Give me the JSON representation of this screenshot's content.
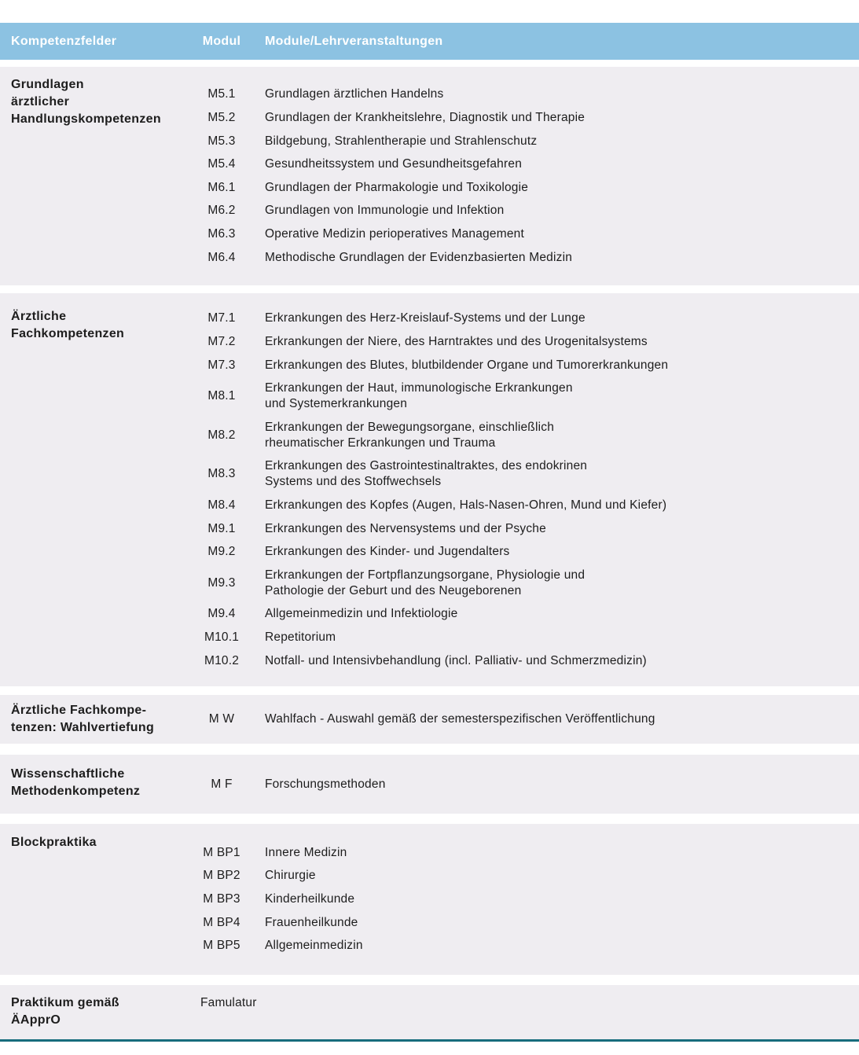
{
  "header": {
    "col1": "Kompetenzfelder",
    "col2": "Modul",
    "col3": "Module/Lehrveranstaltungen"
  },
  "colors": {
    "header_bg": "#8cc2e2",
    "header_text": "#ffffff",
    "band_bg": "#efedf1",
    "text_color": "#1d1d1d",
    "accent": "#176c7c"
  },
  "sections": [
    {
      "field": [
        "Grundlagen",
        "ärztlicher",
        "Handlungskompetenzen"
      ],
      "rows": [
        {
          "code": "M5.1",
          "title": "Grundlagen ärztlichen Handelns"
        },
        {
          "code": "M5.2",
          "title": "Grundlagen der Krankheitslehre, Diagnostik und Therapie"
        },
        {
          "code": "M5.3",
          "title": "Bildgebung, Strahlentherapie und Strahlenschutz"
        },
        {
          "code": "M5.4",
          "title": "Gesundheitssystem und Gesundheitsgefahren"
        },
        {
          "code": "M6.1",
          "title": "Grundlagen der Pharmakologie und Toxikologie"
        },
        {
          "code": "M6.2",
          "title": "Grundlagen von Immunologie und Infektion"
        },
        {
          "code": "M6.3",
          "title": "Operative Medizin perioperatives Management"
        },
        {
          "code": "M6.4",
          "title": "Methodische Grundlagen der Evidenzbasierten Medizin"
        }
      ]
    },
    {
      "field": [
        "Ärztliche",
        "Fachkompetenzen"
      ],
      "rows": [
        {
          "code": "M7.1",
          "title": "Erkrankungen des Herz-Kreislauf-Systems und der Lunge"
        },
        {
          "code": "M7.2",
          "title": "Erkrankungen der Niere, des Harntraktes und des Urogenitalsystems"
        },
        {
          "code": "M7.3",
          "title": "Erkrankungen des Blutes, blutbildender Organe und Tumorerkrankungen"
        },
        {
          "code": "M8.1",
          "title": [
            "Erkrankungen der Haut, immunologische Erkrankungen",
            "und Systemerkrankungen"
          ]
        },
        {
          "code": "M8.2",
          "title": [
            "Erkrankungen der Bewegungsorgane, einschließlich",
            "rheumatischer Erkrankungen und Trauma"
          ]
        },
        {
          "code": "M8.3",
          "title": [
            "Erkrankungen des Gastrointestinaltraktes, des endokrinen",
            "Systems und des Stoffwechsels"
          ]
        },
        {
          "code": "M8.4",
          "title": "Erkrankungen des Kopfes (Augen, Hals-Nasen-Ohren, Mund und Kiefer)"
        },
        {
          "code": "M9.1",
          "title": "Erkrankungen des Nervensystems und der Psyche"
        },
        {
          "code": "M9.2",
          "title": "Erkrankungen des Kinder- und Jugendalters"
        },
        {
          "code": "M9.3",
          "title": [
            "Erkrankungen der Fortpflanzungsorgane, Physiologie und",
            "Pathologie der Geburt und des Neugeborenen"
          ]
        },
        {
          "code": "M9.4",
          "title": "Allgemeinmedizin und Infektiologie"
        },
        {
          "code": "M10.1",
          "title": "Repetitorium"
        },
        {
          "code": "M10.2",
          "title": "Notfall- und Intensivbehandlung (incl. Palliativ- und Schmerzmedizin)"
        }
      ]
    },
    {
      "field": [
        "Ärztliche Fachkompe-",
        "tenzen: Wahlvertiefung"
      ],
      "rows": [
        {
          "code": "M W",
          "title": "Wahlfach - Auswahl gemäß der semesterspezifischen Veröffentlichung"
        }
      ]
    },
    {
      "field": [
        "Wissenschaftliche",
        "Methodenkompetenz"
      ],
      "rows": [
        {
          "code": "M F",
          "title": "Forschungsmethoden"
        }
      ]
    },
    {
      "field": [
        "Blockpraktika"
      ],
      "rows": [
        {
          "code": "M BP1",
          "title": "Innere Medizin"
        },
        {
          "code": "M BP2",
          "title": "Chirurgie"
        },
        {
          "code": "M BP3",
          "title": "Kinderheilkunde"
        },
        {
          "code": "M BP4",
          "title": "Frauenheilkunde"
        },
        {
          "code": "M BP5",
          "title": "Allgemeinmedizin"
        }
      ]
    },
    {
      "field": [
        "Praktikum gemäß",
        "ÄApprO"
      ],
      "rows": [
        {
          "code": "",
          "title": "Famulatur"
        }
      ]
    }
  ]
}
